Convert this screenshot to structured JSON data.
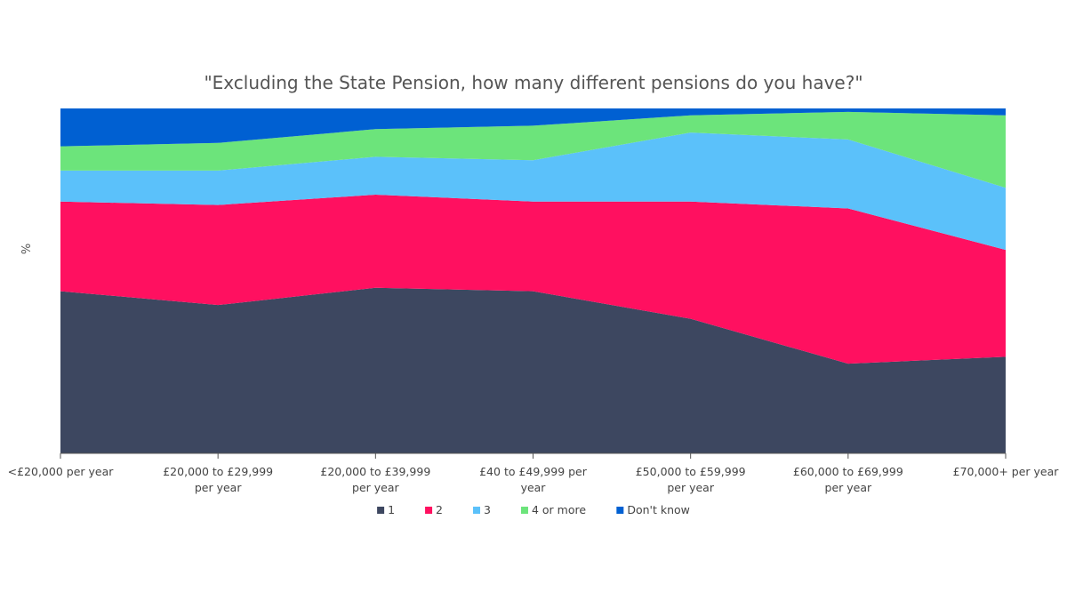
{
  "chart_data": {
    "type": "area",
    "stacked": true,
    "title": "\"Excluding the State Pension, how many different pensions do you have?\"",
    "xlabel": "",
    "ylabel": "%",
    "ylim": [
      0,
      100
    ],
    "grid": false,
    "legend_position": "bottom",
    "categories": [
      "<£20,000 per year",
      "£20,000 to £29,999 per year",
      "£20,000 to £39,999 per year",
      "£40 to £49,999 per year",
      "£50,000 to £59,999 per year",
      "£60,000 to £69,999 per year",
      "£70,000+ per year"
    ],
    "series": [
      {
        "name": "1",
        "color": "#3d4760",
        "values": [
          47,
          43,
          48,
          47,
          39,
          26,
          28
        ]
      },
      {
        "name": "2",
        "color": "#ff1060",
        "values": [
          26,
          29,
          27,
          26,
          34,
          45,
          31
        ]
      },
      {
        "name": "3",
        "color": "#5bc1fa",
        "values": [
          9,
          10,
          11,
          12,
          20,
          20,
          18
        ]
      },
      {
        "name": "4 or more",
        "color": "#6ce47b",
        "values": [
          7,
          8,
          8,
          10,
          5,
          8,
          21
        ]
      },
      {
        "name": "Don't know",
        "color": "#0060d2",
        "values": [
          11,
          10,
          6,
          5,
          2,
          1,
          2
        ]
      }
    ]
  }
}
